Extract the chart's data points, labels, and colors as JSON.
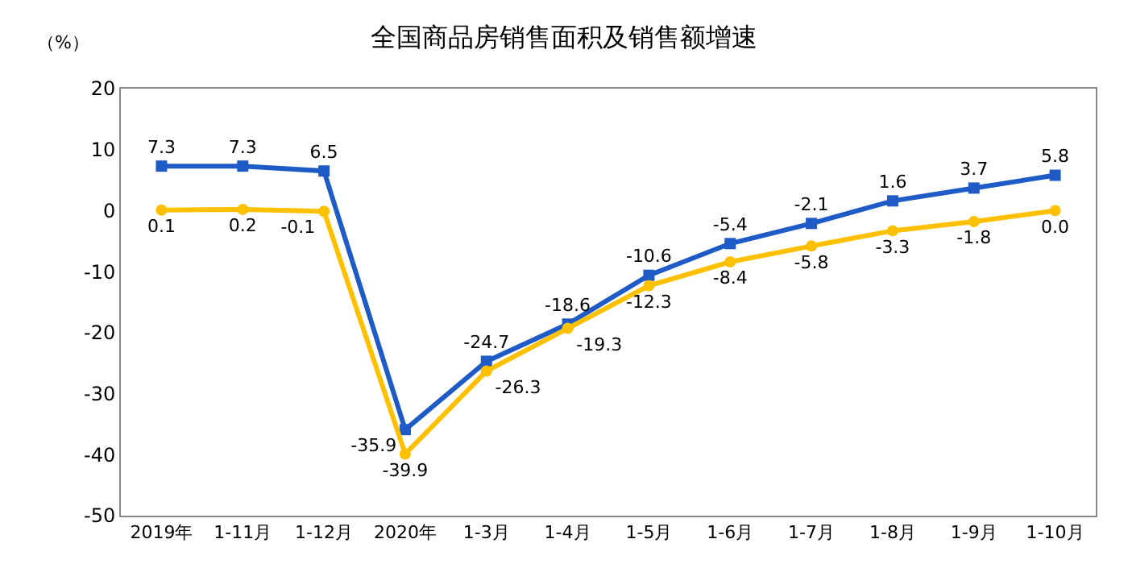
{
  "chart_data": {
    "type": "line",
    "title": "全国商品房销售面积及销售额增速",
    "ylabel": "（%）",
    "categories": [
      "2019年",
      "1-11月",
      "1-12月",
      "2020年",
      "1-3月",
      "1-4月",
      "1-5月",
      "1-6月",
      "1-7月",
      "1-8月",
      "1-9月",
      "1-10月"
    ],
    "series": [
      {
        "color": "#1f5bc6",
        "marker": "square",
        "values": [
          7.3,
          7.3,
          6.5,
          -35.9,
          -24.7,
          -18.6,
          -10.6,
          -5.4,
          -2.1,
          1.6,
          3.7,
          5.8
        ],
        "value_labels": [
          "7.3",
          "7.3",
          "6.5",
          "-35.9",
          "-24.7",
          "-18.6",
          "-10.6",
          "-5.4",
          "-2.1",
          "1.6",
          "3.7",
          "5.8"
        ]
      },
      {
        "color": "#ffc000",
        "marker": "circle",
        "values": [
          0.1,
          0.2,
          -0.1,
          -39.9,
          -26.3,
          -19.3,
          -12.3,
          -8.4,
          -5.8,
          -3.3,
          -1.8,
          0.0
        ],
        "value_labels": [
          "0.1",
          "0.2",
          "-0.1",
          "-39.9",
          "-26.3",
          "-19.3",
          "-12.3",
          "-8.4",
          "-5.8",
          "-3.3",
          "-1.8",
          "0.0"
        ]
      }
    ],
    "ylim": [
      -50,
      20
    ],
    "yticks": [
      -50,
      -40,
      -30,
      -20,
      -10,
      0,
      10,
      20
    ],
    "legend": false,
    "line_style": "solid"
  }
}
